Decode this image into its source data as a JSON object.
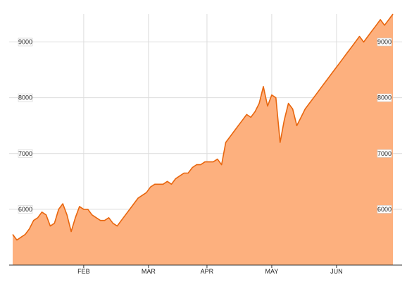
{
  "chart_data": {
    "type": "area",
    "title": "",
    "xlabel": "",
    "ylabel": "",
    "ylim": [
      5000,
      9500
    ],
    "xlim": [
      0,
      182
    ],
    "grid": true,
    "colors": {
      "fill": "#fdb07e",
      "line": "#e8660e",
      "grid": "#dcdcdc",
      "axis": "#333333"
    },
    "y_ticks": [
      6000,
      7000,
      8000,
      9000
    ],
    "y_tick_labels": [
      "6000",
      "7000",
      "8000",
      "9000"
    ],
    "x_ticks": [
      {
        "x": 34,
        "label": "FEB"
      },
      {
        "x": 65,
        "label": "MAR"
      },
      {
        "x": 93,
        "label": "APR"
      },
      {
        "x": 124,
        "label": "MAY"
      },
      {
        "x": 155,
        "label": "JUN"
      }
    ],
    "series": [
      {
        "x": [
          0,
          2,
          4,
          6,
          8,
          10,
          12,
          14,
          16,
          18,
          20,
          22,
          24,
          26,
          28,
          30,
          32,
          34,
          36,
          38,
          40,
          42,
          44,
          46,
          48,
          50,
          52,
          54,
          56,
          58,
          60,
          62,
          64,
          66,
          68,
          70,
          72,
          74,
          76,
          78,
          80,
          82,
          84,
          86,
          88,
          90,
          92,
          94,
          96,
          98,
          100,
          102,
          104,
          106,
          108,
          110,
          112,
          114,
          116,
          118,
          120,
          122,
          124,
          126,
          128,
          130,
          132,
          134,
          136,
          138,
          140,
          142,
          144,
          146,
          148,
          150,
          152,
          154,
          156,
          158,
          160,
          162,
          164,
          166,
          168,
          170,
          172,
          174,
          176,
          178,
          180,
          182
        ],
        "y": [
          5550,
          5450,
          5500,
          5550,
          5650,
          5800,
          5850,
          5950,
          5900,
          5700,
          5750,
          6000,
          6100,
          5900,
          5600,
          5850,
          6050,
          6000,
          6000,
          5900,
          5850,
          5800,
          5800,
          5850,
          5750,
          5700,
          5800,
          5900,
          6000,
          6100,
          6200,
          6250,
          6300,
          6400,
          6450,
          6450,
          6450,
          6500,
          6450,
          6550,
          6600,
          6650,
          6650,
          6750,
          6800,
          6800,
          6850,
          6850,
          6850,
          6900,
          6800,
          7200,
          7300,
          7400,
          7500,
          7600,
          7700,
          7650,
          7750,
          7900,
          8200,
          7850,
          8050,
          8000,
          7200,
          7600,
          7900,
          7800,
          7500,
          7650,
          7800,
          7900,
          8000,
          8100,
          8200,
          8300,
          8400,
          8500,
          8600,
          8700,
          8800,
          8900,
          9000,
          9100,
          9000,
          9100,
          9200,
          9300,
          9400,
          9300,
          9400,
          9500
        ],
        "color": "#e8660e"
      }
    ]
  }
}
